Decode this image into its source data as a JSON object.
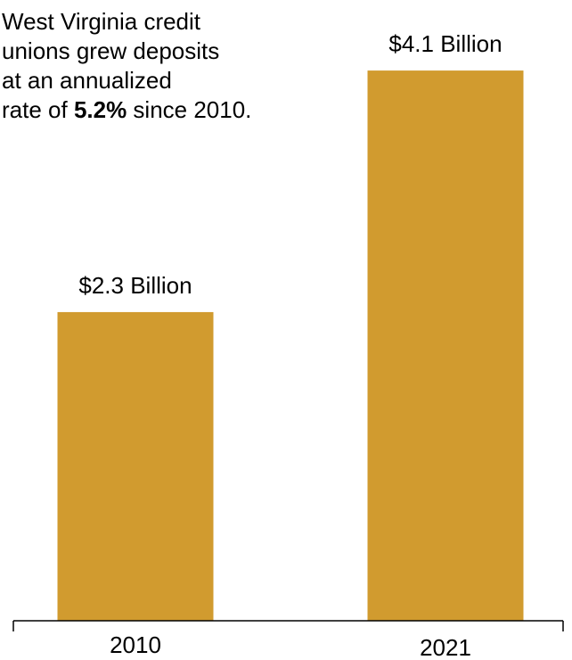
{
  "annotation": {
    "line1": "West Virginia credit",
    "line2": "unions grew deposits",
    "line3": "at an annualized",
    "line4_pre": "rate of ",
    "line4_bold": "5.2%",
    "line4_post": " since 2010."
  },
  "chart_data": {
    "type": "bar",
    "categories": [
      "2010",
      "2021"
    ],
    "values": [
      2.3,
      4.1
    ],
    "data_labels": [
      "$2.3 Billion",
      "$4.1 Billion"
    ],
    "ylim": [
      0,
      4.3
    ],
    "grid": false,
    "bar_color": "#D19B2F",
    "axis_color": "#000000"
  }
}
